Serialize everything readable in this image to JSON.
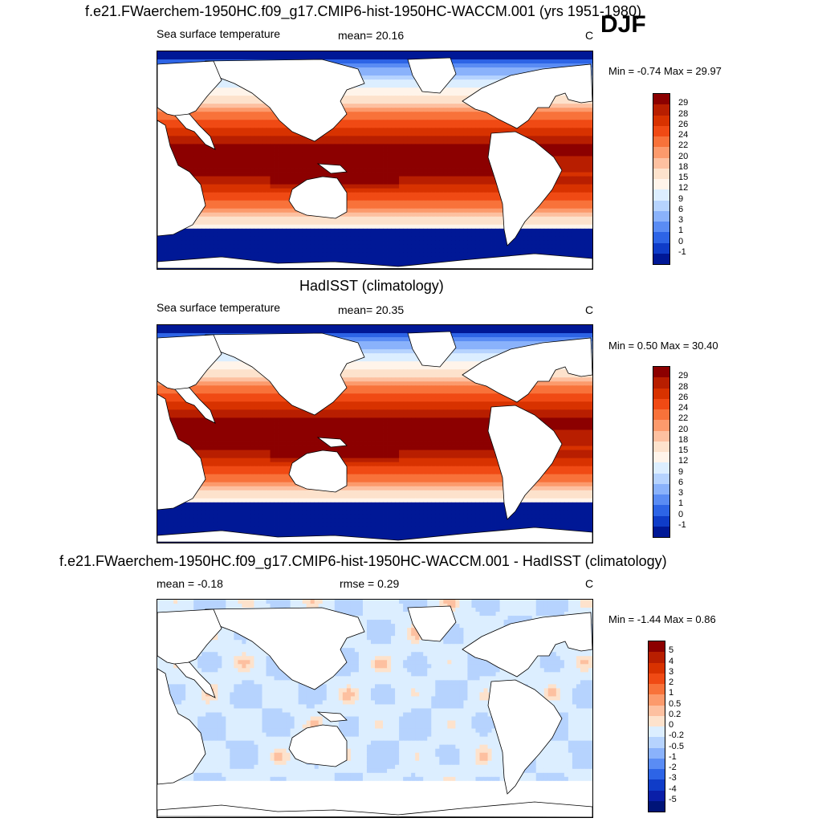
{
  "season": "DJF",
  "panels": [
    {
      "title": "f.e21.FWaerchem-1950HC.f09_g17.CMIP6-hist-1950HC-WACCM.001 (yrs 1951-1980)",
      "left_text": "Sea surface temperature",
      "mid_text": "mean=  20.16",
      "unit": "C",
      "minmax": "Min =  -0.74 Max =  29.97",
      "kind": "sst",
      "colorbar": {
        "labels": [
          "29",
          "28",
          "26",
          "24",
          "22",
          "20",
          "18",
          "15",
          "12",
          "9",
          "6",
          "3",
          "1",
          "0",
          "-1"
        ],
        "colors": [
          "#8c0000",
          "#b81e00",
          "#d83200",
          "#f04a14",
          "#f8723a",
          "#fc9a6c",
          "#fdc0a0",
          "#fde2cc",
          "#fff4ea",
          "#dceeff",
          "#b6d3fe",
          "#8ab2fb",
          "#5a8cf4",
          "#2d64e6",
          "#0f3cc8",
          "#001896"
        ]
      }
    },
    {
      "title": "HadISST (climatology)",
      "left_text": "Sea surface temperature",
      "mid_text": "mean=  20.35",
      "unit": "C",
      "minmax": "Min =   0.50 Max =  30.40",
      "kind": "sst",
      "colorbar": {
        "labels": [
          "29",
          "28",
          "26",
          "24",
          "22",
          "20",
          "18",
          "15",
          "12",
          "9",
          "6",
          "3",
          "1",
          "0",
          "-1"
        ],
        "colors": [
          "#8c0000",
          "#b81e00",
          "#d83200",
          "#f04a14",
          "#f8723a",
          "#fc9a6c",
          "#fdc0a0",
          "#fde2cc",
          "#fff4ea",
          "#dceeff",
          "#b6d3fe",
          "#8ab2fb",
          "#5a8cf4",
          "#2d64e6",
          "#0f3cc8",
          "#001896"
        ]
      }
    },
    {
      "title": "f.e21.FWaerchem-1950HC.f09_g17.CMIP6-hist-1950HC-WACCM.001 - HadISST (climatology)",
      "left_text": "mean =  -0.18",
      "mid_text": "rmse =   0.29",
      "unit": "C",
      "minmax": "Min =  -1.44 Max =   0.86",
      "kind": "diff",
      "colorbar": {
        "labels": [
          "5",
          "4",
          "3",
          "2",
          "1",
          "0.5",
          "0.2",
          "0",
          "-0.2",
          "-0.5",
          "-1",
          "-2",
          "-3",
          "-4",
          "-5"
        ],
        "colors": [
          "#8c0000",
          "#b81e00",
          "#d83200",
          "#f04a14",
          "#f8723a",
          "#fc9a6c",
          "#fdc0a0",
          "#fde2cc",
          "#dceeff",
          "#b6d3fe",
          "#8ab2fb",
          "#5a8cf4",
          "#2d64e6",
          "#0f3cc8",
          "#0a1ea8",
          "#001478"
        ]
      }
    }
  ]
}
